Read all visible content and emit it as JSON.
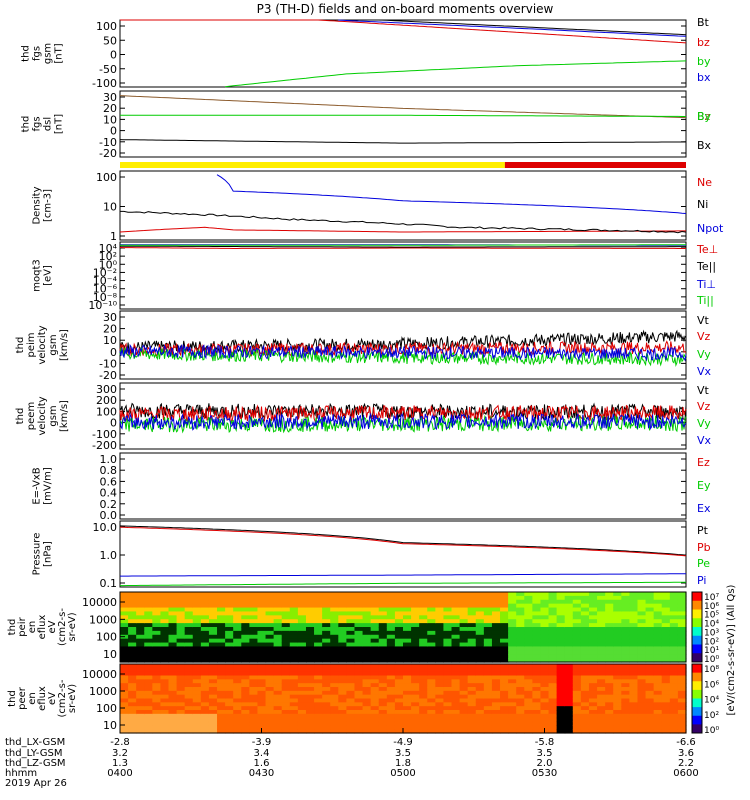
{
  "title": "P3 (TH-D) fields and on-board moments overview",
  "colors": {
    "black": "#000000",
    "red": "#dd0000",
    "green": "#00cc00",
    "blue": "#0000dd",
    "yellow": "#ffee00",
    "brown": "#8b5a2b"
  },
  "chart_data": [
    {
      "type": "line",
      "ylabel": [
        "thd",
        "fgs",
        "gsm",
        "[nT]"
      ],
      "yticks": [
        "100",
        "50",
        "0",
        "-50",
        "-100"
      ],
      "ylim": [
        -100,
        105
      ],
      "log": false,
      "series": [
        {
          "name": "Bt",
          "color": "black",
          "t": [
            0,
            0.4,
            1
          ],
          "y": [
            150,
            110,
            60
          ]
        },
        {
          "name": "bz",
          "color": "red",
          "t": [
            0,
            0.4,
            1
          ],
          "y": [
            140,
            100,
            35
          ]
        },
        {
          "name": "by",
          "color": "green",
          "t": [
            0.18,
            0.4,
            0.7,
            1
          ],
          "y": [
            -100,
            -60,
            -35,
            -20
          ]
        },
        {
          "name": "bx",
          "color": "blue",
          "t": [
            0.38,
            0.7,
            1
          ],
          "y": [
            105,
            80,
            55
          ]
        }
      ]
    },
    {
      "type": "line",
      "ylabel": [
        "thd",
        "fgs",
        "dsl",
        "[nT]"
      ],
      "yticks": [
        "30",
        "20",
        "10",
        "0",
        "-10",
        "-20"
      ],
      "ylim": [
        -25,
        32
      ],
      "log": false,
      "series": [
        {
          "name": "Bz",
          "color": "brown",
          "t": [
            0,
            0.5,
            1
          ],
          "y": [
            28,
            17,
            9
          ]
        },
        {
          "name": "By",
          "color": "green",
          "t": [
            0,
            0.5,
            1
          ],
          "y": [
            11,
            11,
            10
          ]
        },
        {
          "name": "Bx",
          "color": "black",
          "t": [
            0,
            0.5,
            1
          ],
          "y": [
            -10,
            -13,
            -12
          ]
        }
      ]
    },
    {
      "type": "line",
      "ylabel": [
        "Density",
        "[cm-3]"
      ],
      "yticks": [
        "100",
        "10",
        "1"
      ],
      "ylim": [
        0.5,
        200
      ],
      "log": true,
      "series": [
        {
          "name": "Ne",
          "color": "red",
          "t": [
            0,
            0.15,
            0.2,
            0.5,
            1
          ],
          "y": [
            1,
            1.5,
            1.2,
            1,
            1.1
          ]
        },
        {
          "name": "Ni",
          "color": "black",
          "t": [
            0,
            0.3,
            0.6,
            1
          ],
          "y": [
            6,
            3,
            1.5,
            1
          ]
        },
        {
          "name": "Npot",
          "color": "blue",
          "t": [
            0.17,
            0.2,
            0.5,
            1
          ],
          "y": [
            150,
            35,
            15,
            5
          ]
        }
      ]
    },
    {
      "type": "line",
      "ylabel": [
        "moqt3",
        "[eV]"
      ],
      "yticks": [
        "10⁴",
        "10²",
        "10⁰",
        "10⁻²",
        "10⁻⁴",
        "10⁻⁶",
        "10⁻⁸",
        "10⁻¹⁰"
      ],
      "ylim": [
        -10,
        4.5
      ],
      "log": false,
      "series": [
        {
          "name": "Te⊥",
          "color": "red",
          "t": [
            0,
            0.2,
            0.5,
            1
          ],
          "y": [
            3.3,
            3.1,
            3.2,
            3.1
          ]
        },
        {
          "name": "Te||",
          "color": "black",
          "t": [
            0,
            0.5,
            1
          ],
          "y": [
            3.6,
            3.4,
            3.5
          ]
        },
        {
          "name": "Ti⊥",
          "color": "blue",
          "t": [
            0,
            0.5,
            1
          ],
          "y": [
            3.9,
            3.9,
            3.8
          ]
        },
        {
          "name": "Ti||",
          "color": "green",
          "t": [
            0,
            0.5,
            1
          ],
          "y": [
            3.8,
            3.8,
            3.9
          ]
        }
      ]
    },
    {
      "type": "line",
      "ylabel": [
        "thd",
        "peim",
        "velocity",
        "gsm",
        "[km/s]"
      ],
      "yticks": [
        "30",
        "20",
        "10",
        "0",
        "-10",
        "-20"
      ],
      "ylim": [
        -22,
        32
      ],
      "log": false,
      "series": [
        {
          "name": "Vt",
          "color": "black",
          "t": [
            0,
            0.5,
            1
          ],
          "y": [
            3,
            6,
            12
          ]
        },
        {
          "name": "Vz",
          "color": "red",
          "t": [
            0,
            0.5,
            1
          ],
          "y": [
            1,
            2,
            3
          ]
        },
        {
          "name": "Vy",
          "color": "green",
          "t": [
            0,
            0.5,
            1
          ],
          "y": [
            -2,
            -5,
            -6
          ]
        },
        {
          "name": "Vx",
          "color": "blue",
          "t": [
            0,
            0.5,
            1
          ],
          "y": [
            0,
            -1,
            -2
          ]
        }
      ]
    },
    {
      "type": "line",
      "ylabel": [
        "thd",
        "peem",
        "velocity",
        "gsm",
        "[km/s]"
      ],
      "yticks": [
        "300",
        "200",
        "100",
        "0",
        "-100",
        "-200"
      ],
      "ylim": [
        -210,
        305
      ],
      "log": false,
      "series": [
        {
          "name": "Vt",
          "color": "black",
          "t": [
            0,
            0.5,
            1
          ],
          "y": [
            90,
            80,
            80
          ]
        },
        {
          "name": "Vz",
          "color": "red",
          "t": [
            0,
            0.5,
            1
          ],
          "y": [
            60,
            70,
            70
          ]
        },
        {
          "name": "Vy",
          "color": "green",
          "t": [
            0,
            0.5,
            1
          ],
          "y": [
            -20,
            -15,
            -10
          ]
        },
        {
          "name": "Vx",
          "color": "blue",
          "t": [
            0,
            0.5,
            1
          ],
          "y": [
            0,
            5,
            5
          ]
        }
      ]
    },
    {
      "type": "line",
      "ylabel": [
        "E=-VxB",
        "[mV/m]"
      ],
      "yticks": [
        "1.0",
        "0.8",
        "0.6",
        "0.4",
        "0.2",
        "0.0"
      ],
      "ylim": [
        0,
        1
      ],
      "log": false,
      "series": [
        {
          "name": "Ez",
          "color": "red",
          "t": [],
          "y": []
        },
        {
          "name": "Ey",
          "color": "green",
          "t": [],
          "y": []
        },
        {
          "name": "Ex",
          "color": "blue",
          "t": [],
          "y": []
        }
      ]
    },
    {
      "type": "line",
      "ylabel": [
        "Pressure",
        "[nPa]"
      ],
      "yticks": [
        "10.0",
        "1.0",
        "0.1"
      ],
      "ylim": [
        0.07,
        40
      ],
      "log": true,
      "series": [
        {
          "name": "Pt",
          "color": "black",
          "t": [
            0,
            0.5,
            1
          ],
          "y": [
            25,
            5,
            1.5
          ]
        },
        {
          "name": "Pb",
          "color": "red",
          "t": [
            0,
            0.5,
            1
          ],
          "y": [
            22,
            4.5,
            1.4
          ]
        },
        {
          "name": "Pe",
          "color": "green",
          "t": [
            0,
            0.5,
            1
          ],
          "y": [
            0.08,
            0.1,
            0.11
          ]
        },
        {
          "name": "Pi",
          "color": "blue",
          "t": [
            0,
            0.5,
            1
          ],
          "y": [
            0.2,
            0.22,
            0.25
          ]
        }
      ]
    }
  ],
  "spectra": [
    {
      "ylabel": [
        "thd",
        "peir",
        "en",
        "eflux",
        "eV",
        "(cm2-s-",
        "sr-eV)"
      ],
      "yticks": [
        "10000",
        "1000",
        "100",
        "10"
      ],
      "colorbar_ticks": [
        "10⁷",
        "10⁶",
        "10⁵",
        "10⁴",
        "10³",
        "10²",
        "10¹",
        "10⁰"
      ]
    },
    {
      "ylabel": [
        "thd",
        "peer",
        "en",
        "eflux",
        "eV",
        "(cm2-s-",
        "sr-eV)"
      ],
      "yticks": [
        "10000",
        "1000",
        "100",
        "10"
      ],
      "colorbar_ticks": [
        "10⁸",
        "10⁶",
        "10⁴",
        "10²",
        "10⁰"
      ]
    }
  ],
  "colorbar_label": "[eV/(cm2-s-sr-eV)] (All Qs)",
  "footer": {
    "labels": [
      "thd_LX-GSM",
      "thd_LY-GSM",
      "thd_LZ-GSM",
      "hhmm",
      "2019 Apr 26"
    ],
    "columns": [
      [
        "-2.8",
        "3.2",
        "1.3",
        "0400"
      ],
      [
        "-3.9",
        "3.4",
        "1.6",
        "0430"
      ],
      [
        "-4.9",
        "3.5",
        "1.8",
        "0500"
      ],
      [
        "-5.8",
        "3.5",
        "2.0",
        "0530"
      ],
      [
        "-6.6",
        "3.6",
        "2.2",
        "0600"
      ]
    ]
  },
  "status_bar": {
    "split": 0.68,
    "left_color": "#ffee00",
    "right_color": "#dd0000"
  }
}
